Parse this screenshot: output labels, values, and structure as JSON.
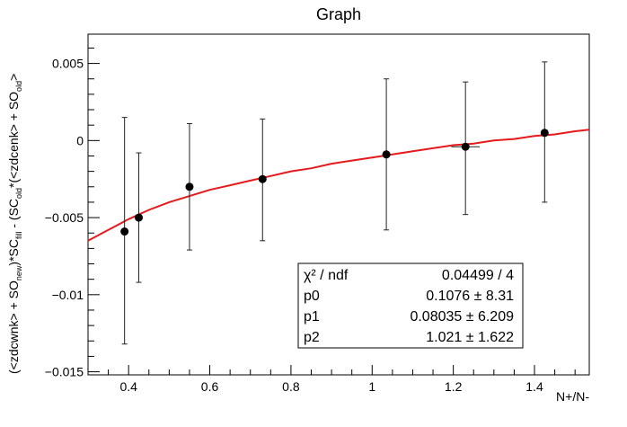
{
  "chart_data": {
    "type": "scatter",
    "title": "Graph",
    "xlabel": "N+/N-",
    "ylabel": {
      "p1": "(<zdcwnk> + SO",
      "s1": "new",
      "p2": ")*SC",
      "s2": "fill",
      "p3": " - (SC",
      "s3": "old",
      "p4": "*(<zdcenk> + SO",
      "s4": "old",
      "p5": ">"
    },
    "xlim": [
      0.3,
      1.535
    ],
    "ylim": [
      -0.0152,
      0.0069
    ],
    "xticks": [
      {
        "v": 0.4,
        "label": "0.4"
      },
      {
        "v": 0.6,
        "label": "0.6"
      },
      {
        "v": 0.8,
        "label": "0.8"
      },
      {
        "v": 1.0,
        "label": "1"
      },
      {
        "v": 1.2,
        "label": "1.2"
      },
      {
        "v": 1.4,
        "label": "1.4"
      }
    ],
    "yticks": [
      {
        "v": 0.005,
        "label": "0.005"
      },
      {
        "v": 0.0,
        "label": "0"
      },
      {
        "v": -0.005,
        "label": "−0.005"
      },
      {
        "v": -0.01,
        "label": "−0.01"
      },
      {
        "v": -0.015,
        "label": "−0.015"
      }
    ],
    "points": [
      {
        "x": 0.39,
        "y": -0.0059,
        "ey_low": 0.0073,
        "ey_high": 0.0074,
        "ex": 0.0
      },
      {
        "x": 0.425,
        "y": -0.005,
        "ey_low": 0.0042,
        "ey_high": 0.0042,
        "ex": 0.0
      },
      {
        "x": 0.55,
        "y": -0.003,
        "ey_low": 0.0041,
        "ey_high": 0.0041,
        "ex": 0.0
      },
      {
        "x": 0.73,
        "y": -0.0025,
        "ey_low": 0.004,
        "ey_high": 0.0039,
        "ex": 0.0
      },
      {
        "x": 1.035,
        "y": -0.0009,
        "ey_low": 0.0049,
        "ey_high": 0.0049,
        "ex": 0.0
      },
      {
        "x": 1.23,
        "y": -0.0004,
        "ey_low": 0.0044,
        "ey_high": 0.0042,
        "ex": 0.035
      },
      {
        "x": 1.425,
        "y": 0.0005,
        "ey_low": 0.0045,
        "ey_high": 0.0046,
        "ex": 0.0
      }
    ],
    "fit": {
      "color": "#e41a1c",
      "x": [
        0.3,
        0.35,
        0.4,
        0.45,
        0.5,
        0.55,
        0.6,
        0.65,
        0.7,
        0.75,
        0.8,
        0.85,
        0.9,
        0.95,
        1.0,
        1.05,
        1.1,
        1.15,
        1.2,
        1.25,
        1.3,
        1.35,
        1.4,
        1.45,
        1.5,
        1.535
      ],
      "y": [
        -0.0065,
        -0.0058,
        -0.0051,
        -0.0045,
        -0.004,
        -0.0036,
        -0.0032,
        -0.0029,
        -0.0026,
        -0.0023,
        -0.002,
        -0.0018,
        -0.0015,
        -0.0013,
        -0.0011,
        -0.0009,
        -0.0007,
        -0.0005,
        -0.0003,
        -0.0002,
        0.0,
        0.0001,
        0.0003,
        0.0004,
        0.0006,
        0.0007
      ]
    },
    "stats": [
      {
        "label": "χ² / ndf",
        "value": "0.04499 / 4"
      },
      {
        "label": "p0",
        "value": "0.1076 ±  8.31"
      },
      {
        "label": "p1",
        "value": "0.08035 ± 6.209"
      },
      {
        "label": "p2",
        "value": "1.021 ± 1.622"
      }
    ],
    "marker_color": "#000000",
    "grid": false,
    "legend": "bottom-right"
  }
}
